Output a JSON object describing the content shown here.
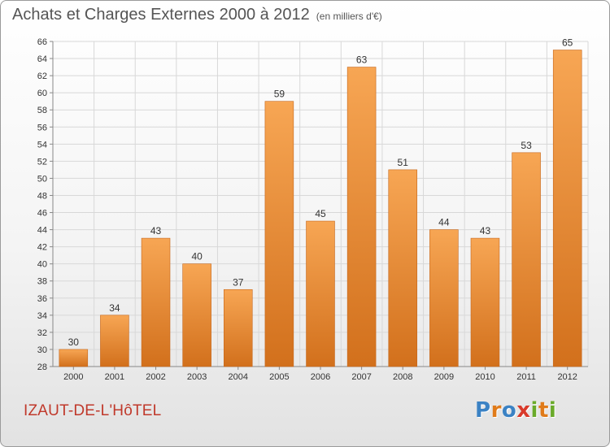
{
  "header": {
    "title": "Achats et Charges Externes 2000 à 2012",
    "unit": "(en milliers d'€)"
  },
  "place_name": "IZAUT-DE-L'HôTEL",
  "logo": {
    "text": "Proxiti",
    "letters": [
      {
        "ch": "P",
        "color": "#3b82c4"
      },
      {
        "ch": "r",
        "color": "#e07b1a"
      },
      {
        "ch": "o",
        "color": "#3b82c4"
      },
      {
        "ch": "x",
        "color": "#d93a2b"
      },
      {
        "ch": "i",
        "color": "#6aaa2a"
      },
      {
        "ch": "t",
        "color": "#e07b1a"
      },
      {
        "ch": "i",
        "color": "#6aaa2a"
      }
    ]
  },
  "colors": {
    "bar_top": "#f7a654",
    "bar_bottom": "#d2701c",
    "bar_edge": "#c6661a",
    "grid": "#d8d8d8",
    "text": "#333333"
  },
  "chart_data": {
    "type": "bar",
    "title": "Achats et Charges Externes 2000 à 2012",
    "subtitle": "(en milliers d'€)",
    "categories": [
      "2000",
      "2001",
      "2002",
      "2003",
      "2004",
      "2005",
      "2006",
      "2007",
      "2008",
      "2009",
      "2010",
      "2011",
      "2012"
    ],
    "values": [
      30,
      34,
      43,
      40,
      37,
      59,
      45,
      63,
      51,
      44,
      43,
      53,
      65
    ],
    "ylim": [
      28,
      66
    ],
    "yticks": [
      28,
      30,
      32,
      34,
      36,
      38,
      40,
      42,
      44,
      46,
      48,
      50,
      52,
      54,
      56,
      58,
      60,
      62,
      64,
      66
    ],
    "grid": true,
    "data_labels": true,
    "xlabel": "",
    "ylabel": ""
  }
}
